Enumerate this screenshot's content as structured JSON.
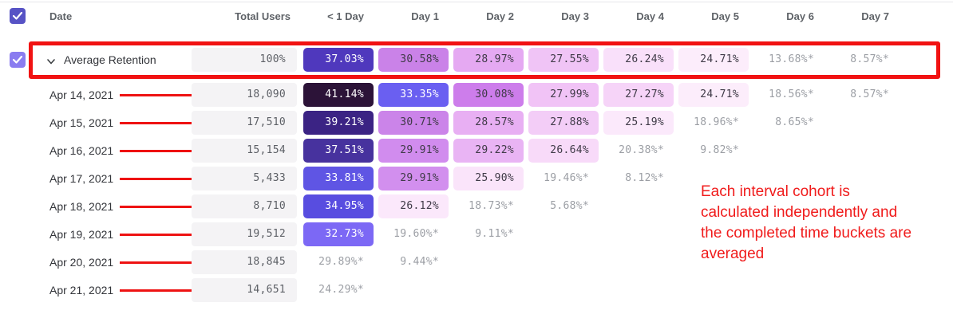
{
  "table": {
    "columns": [
      "Date",
      "Total Users",
      "< 1 Day",
      "Day 1",
      "Day 2",
      "Day 3",
      "Day 4",
      "Day 5",
      "Day 6",
      "Day 7"
    ],
    "rows": [
      {
        "type": "average",
        "label": "Average Retention",
        "total": "100%",
        "cells": [
          {
            "v": "37.03%",
            "bg": "#4f38bd",
            "style": "light"
          },
          {
            "v": "30.58%",
            "bg": "#ca82e8",
            "style": "dark"
          },
          {
            "v": "28.97%",
            "bg": "#e5a9f2",
            "style": "dark"
          },
          {
            "v": "27.55%",
            "bg": "#f0c4f6",
            "style": "dark"
          },
          {
            "v": "26.24%",
            "bg": "#f9e0fa",
            "style": "dark"
          },
          {
            "v": "24.71%",
            "bg": "#fcedfb",
            "style": "dark"
          },
          {
            "v": "13.68%*",
            "bg": null,
            "style": "muted"
          },
          {
            "v": "8.57%*",
            "bg": null,
            "style": "muted"
          }
        ]
      },
      {
        "type": "date",
        "label": "Apr 14, 2021",
        "total": "18,090",
        "cells": [
          {
            "v": "41.14%",
            "bg": "#2c1338",
            "style": "light"
          },
          {
            "v": "33.35%",
            "bg": "#6a5ff1",
            "style": "light"
          },
          {
            "v": "30.08%",
            "bg": "#cd7deb",
            "style": "dark"
          },
          {
            "v": "27.99%",
            "bg": "#f1c3f6",
            "style": "dark"
          },
          {
            "v": "27.27%",
            "bg": "#f6d4f8",
            "style": "dark"
          },
          {
            "v": "24.71%",
            "bg": "#fcedfb",
            "style": "dark"
          },
          {
            "v": "18.56%*",
            "bg": null,
            "style": "muted"
          },
          {
            "v": "8.57%*",
            "bg": null,
            "style": "muted"
          }
        ]
      },
      {
        "type": "date",
        "label": "Apr 15, 2021",
        "total": "17,510",
        "cells": [
          {
            "v": "39.21%",
            "bg": "#3b2384",
            "style": "light"
          },
          {
            "v": "30.71%",
            "bg": "#cb84e9",
            "style": "dark"
          },
          {
            "v": "28.57%",
            "bg": "#e8aff3",
            "style": "dark"
          },
          {
            "v": "27.88%",
            "bg": "#f3cdf7",
            "style": "dark"
          },
          {
            "v": "25.19%",
            "bg": "#fbe9fb",
            "style": "dark"
          },
          {
            "v": "18.96%*",
            "bg": null,
            "style": "muted"
          },
          {
            "v": "8.65%*",
            "bg": null,
            "style": "muted"
          }
        ]
      },
      {
        "type": "date",
        "label": "Apr 16, 2021",
        "total": "15,154",
        "cells": [
          {
            "v": "37.51%",
            "bg": "#47329e",
            "style": "light"
          },
          {
            "v": "29.91%",
            "bg": "#d18cee",
            "style": "dark"
          },
          {
            "v": "29.22%",
            "bg": "#e9b4f4",
            "style": "dark"
          },
          {
            "v": "26.64%",
            "bg": "#f8daf9",
            "style": "dark"
          },
          {
            "v": "20.38%*",
            "bg": null,
            "style": "muted"
          },
          {
            "v": "9.82%*",
            "bg": null,
            "style": "muted"
          }
        ]
      },
      {
        "type": "date",
        "label": "Apr 17, 2021",
        "total": "5,433",
        "cells": [
          {
            "v": "33.81%",
            "bg": "#5f55e4",
            "style": "light"
          },
          {
            "v": "29.91%",
            "bg": "#d28fee",
            "style": "dark"
          },
          {
            "v": "25.90%",
            "bg": "#fae4fa",
            "style": "dark"
          },
          {
            "v": "19.46%*",
            "bg": null,
            "style": "muted"
          },
          {
            "v": "8.12%*",
            "bg": null,
            "style": "muted"
          }
        ]
      },
      {
        "type": "date",
        "label": "Apr 18, 2021",
        "total": "8,710",
        "cells": [
          {
            "v": "34.95%",
            "bg": "#584de0",
            "style": "light"
          },
          {
            "v": "26.12%",
            "bg": "#fbe8fb",
            "style": "dark"
          },
          {
            "v": "18.73%*",
            "bg": null,
            "style": "muted"
          },
          {
            "v": "5.68%*",
            "bg": null,
            "style": "muted"
          }
        ]
      },
      {
        "type": "date",
        "label": "Apr 19, 2021",
        "total": "19,512",
        "cells": [
          {
            "v": "32.73%",
            "bg": "#7c68f5",
            "style": "light"
          },
          {
            "v": "19.60%*",
            "bg": null,
            "style": "muted"
          },
          {
            "v": "9.11%*",
            "bg": null,
            "style": "muted"
          }
        ]
      },
      {
        "type": "date",
        "label": "Apr 20, 2021",
        "total": "18,845",
        "cells": [
          {
            "v": "29.89%*",
            "bg": null,
            "style": "muted"
          },
          {
            "v": "9.44%*",
            "bg": null,
            "style": "muted"
          }
        ]
      },
      {
        "type": "date",
        "label": "Apr 21, 2021",
        "total": "14,651",
        "cells": [
          {
            "v": "24.29%*",
            "bg": null,
            "style": "muted"
          }
        ]
      }
    ]
  },
  "annotations": {
    "note_lines": [
      "Each interval cohort is",
      "calculated independently and",
      "the completed time buckets are",
      "averaged"
    ]
  },
  "colors": {
    "annotation_red": "#f11212",
    "header_checkbox": "#5753c5",
    "row_checkbox": "#8a7cf0",
    "light_text": "#ffffff",
    "dark_text": "#3f3a47",
    "muted_text": "#9b9ea4"
  }
}
